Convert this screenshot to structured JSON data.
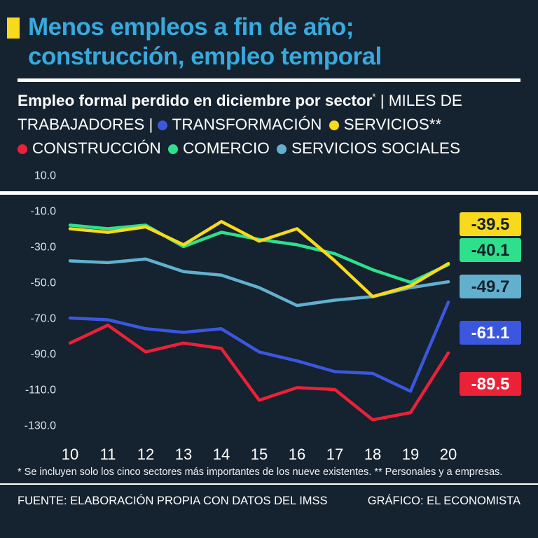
{
  "meta": {
    "background": "#15222f",
    "title_color": "#38a9dd",
    "accent_yellow": "#f8da1c"
  },
  "header": {
    "title_line1": "Menos empleos a fin de año;",
    "title_line2": "construcción, empleo temporal"
  },
  "subtitle": {
    "bold": "Empleo formal perdido en diciembre  por sector",
    "marker": "*",
    "units": "| MILES DE TRABAJADORES |"
  },
  "legend": [
    {
      "label": "TRANSFORMACIÓN",
      "color": "#3b57de"
    },
    {
      "label": "SERVICIOS**",
      "color": "#f8d91c"
    },
    {
      "label": "CONSTRUCCIÓN",
      "color": "#eb2138"
    },
    {
      "label": "COMERCIO",
      "color": "#2ee08c"
    },
    {
      "label": "SERVICIOS SOCIALES",
      "color": "#62b0ce"
    }
  ],
  "chart_data": {
    "type": "line",
    "title": "Empleo formal perdido en diciembre por sector (miles de trabajadores)",
    "xlabel": "",
    "ylabel": "",
    "x": [
      10,
      11,
      12,
      13,
      14,
      15,
      16,
      17,
      18,
      19,
      20
    ],
    "yticks": [
      10,
      -10,
      -30,
      -50,
      -70,
      -90,
      -110,
      -130
    ],
    "ylim": [
      -135,
      12
    ],
    "grid": false,
    "legend_position": "top",
    "series": [
      {
        "name": "SERVICIOS SOCIALES",
        "slug": "servicios-sociales",
        "color": "#62b0ce",
        "label_text": "#10202c",
        "end_label": "-49.7",
        "values": [
          -38,
          -39,
          -37,
          -44,
          -46,
          -53,
          -63,
          -60,
          -58,
          -53,
          -49.7
        ]
      },
      {
        "name": "COMERCIO",
        "slug": "comercio",
        "color": "#2ee08c",
        "label_text": "#10202c",
        "end_label": "-40.1",
        "values": [
          -18,
          -20,
          -18,
          -30,
          -22,
          -26,
          -29,
          -34,
          -43,
          -50,
          -40.1
        ]
      },
      {
        "name": "SERVICIOS",
        "slug": "servicios",
        "color": "#f8d91c",
        "label_text": "#10202c",
        "end_label": "-39.5",
        "values": [
          -20,
          -22,
          -19,
          -29,
          -16,
          -27,
          -20,
          -38,
          -58,
          -52,
          -39.5
        ]
      },
      {
        "name": "CONSTRUCCIÓN",
        "slug": "construccion",
        "color": "#eb2138",
        "label_text": "#ffffff",
        "end_label": "-89.5",
        "values": [
          -84,
          -74,
          -89,
          -84,
          -87,
          -116,
          -109,
          -110,
          -127,
          -123,
          -89.5
        ]
      },
      {
        "name": "TRANSFORMACIÓN",
        "slug": "transformacion",
        "color": "#3b57de",
        "label_text": "#ffffff",
        "end_label": "-61.1",
        "values": [
          -70,
          -71,
          -76,
          -78,
          -76,
          -89,
          -94,
          -100,
          -101,
          -111,
          -61.1
        ]
      }
    ]
  },
  "footnote": "* Se incluyen solo los cinco sectores más importantes de los nueve existentes. ** Personales y a empresas.",
  "footer": {
    "source": "FUENTE: ELABORACIÓN PROPIA  CON DATOS DEL IMSS",
    "credit": "GRÁFICO: EL ECONOMISTA"
  }
}
